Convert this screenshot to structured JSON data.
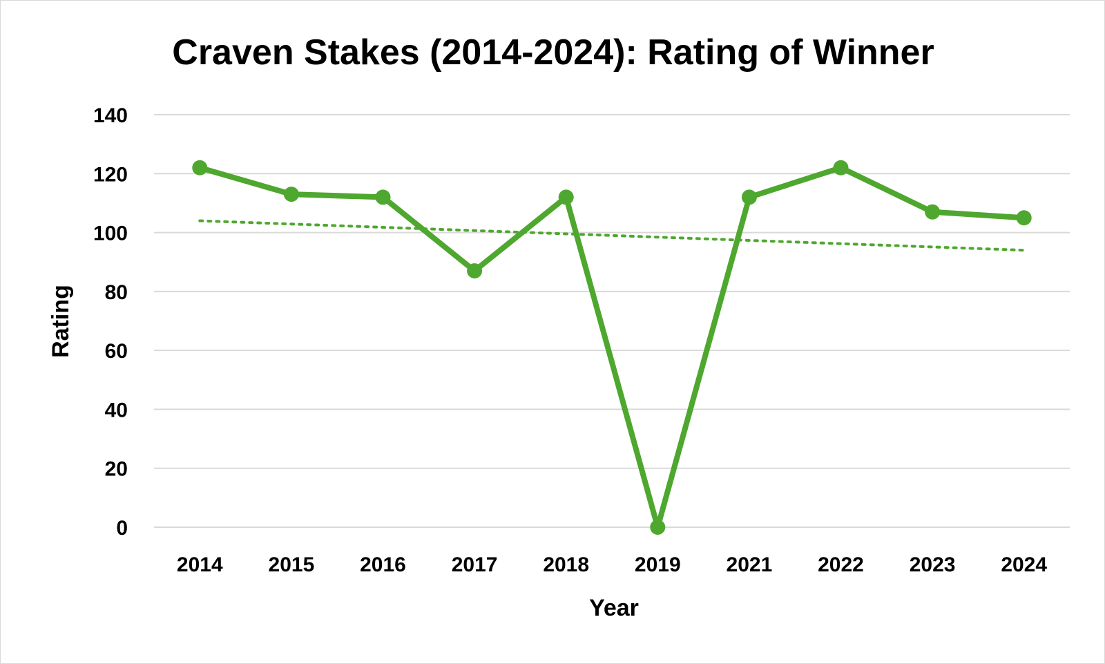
{
  "chart_data": {
    "type": "line",
    "title": "Craven Stakes (2014-2024): Rating of Winner",
    "xlabel": "Year",
    "ylabel": "Rating",
    "categories": [
      "2014",
      "2015",
      "2016",
      "2017",
      "2018",
      "2019",
      "2021",
      "2022",
      "2023",
      "2024"
    ],
    "series": [
      {
        "values": [
          122,
          113,
          112,
          87,
          112,
          0,
          112,
          122,
          107,
          105
        ],
        "color": "#4ea72e",
        "markers": true
      }
    ],
    "trendline": {
      "type": "linear",
      "style": "dotted",
      "color": "#4ea72e",
      "start_value": 104,
      "end_value": 94
    },
    "y_ticks": [
      "0",
      "20",
      "40",
      "60",
      "80",
      "100",
      "120",
      "140"
    ],
    "ylim": [
      0,
      140
    ],
    "grid": true,
    "legend": "none"
  }
}
